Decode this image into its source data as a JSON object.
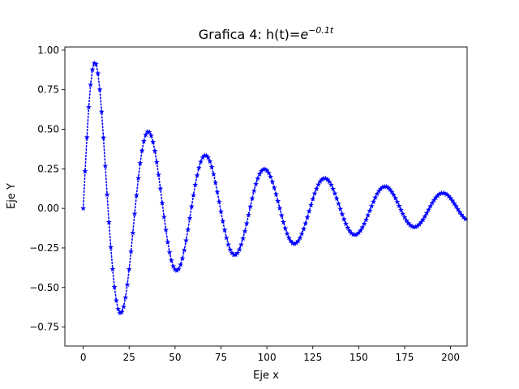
{
  "chart_data": {
    "type": "line",
    "title": "Grafica 4: h(t)=",
    "title_math": {
      "base": "e",
      "exponent": "−0.1t"
    },
    "xlabel": "Eje x",
    "ylabel": "Eje Y",
    "xlim": [
      -10,
      209
    ],
    "ylim": [
      -0.87,
      1.02
    ],
    "xticks": [
      0,
      25,
      50,
      75,
      100,
      125,
      150,
      175,
      200
    ],
    "xtick_labels": [
      "0",
      "25",
      "50",
      "75",
      "100",
      "125",
      "150",
      "175",
      "200"
    ],
    "yticks": [
      -0.75,
      -0.5,
      -0.25,
      0.0,
      0.25,
      0.5,
      0.75,
      1.0
    ],
    "ytick_labels": [
      "−0.75",
      "−0.50",
      "−0.25",
      "0.00",
      "0.25",
      "0.50",
      "0.75",
      "1.00"
    ],
    "grid": false,
    "series": [
      {
        "color": "#0000ff",
        "line_style": "dotted",
        "marker": "star",
        "x_start": 0,
        "x_step": 1,
        "y": [
          0,
          0.235,
          0.449,
          0.639,
          0.781,
          0.877,
          0.918,
          0.912,
          0.853,
          0.751,
          0.611,
          0.447,
          0.268,
          0.087,
          -0.087,
          -0.245,
          -0.384,
          -0.497,
          -0.582,
          -0.636,
          -0.661,
          -0.655,
          -0.622,
          -0.563,
          -0.482,
          -0.384,
          -0.273,
          -0.155,
          -0.034,
          0.083,
          0.191,
          0.286,
          0.365,
          0.425,
          0.465,
          0.484,
          0.482,
          0.46,
          0.419,
          0.363,
          0.292,
          0.212,
          0.125,
          0.035,
          -0.054,
          -0.137,
          -0.213,
          -0.278,
          -0.329,
          -0.366,
          -0.387,
          -0.393,
          -0.382,
          -0.356,
          -0.316,
          -0.264,
          -0.203,
          -0.134,
          -0.062,
          0.012,
          0.083,
          0.149,
          0.208,
          0.257,
          0.295,
          0.321,
          0.334,
          0.334,
          0.321,
          0.297,
          0.261,
          0.216,
          0.163,
          0.104,
          0.042,
          -0.02,
          -0.081,
          -0.137,
          -0.187,
          -0.229,
          -0.261,
          -0.283,
          -0.294,
          -0.293,
          -0.282,
          -0.26,
          -0.229,
          -0.19,
          -0.145,
          -0.095,
          -0.042,
          0.011,
          0.063,
          0.111,
          0.153,
          0.189,
          0.217,
          0.236,
          0.246,
          0.248,
          0.24,
          0.224,
          0.2,
          0.168,
          0.131,
          0.09,
          0.046,
          0.001,
          -0.044,
          -0.087,
          -0.126,
          -0.16,
          -0.187,
          -0.207,
          -0.22,
          -0.224,
          -0.219,
          -0.207,
          -0.187,
          -0.161,
          -0.13,
          -0.095,
          -0.057,
          -0.018,
          0.021,
          0.059,
          0.094,
          0.124,
          0.15,
          0.17,
          0.183,
          0.19,
          0.189,
          0.182,
          0.168,
          0.148,
          0.123,
          0.094,
          0.063,
          0.03,
          -0.004,
          -0.037,
          -0.069,
          -0.098,
          -0.122,
          -0.142,
          -0.157,
          -0.165,
          -0.167,
          -0.164,
          -0.154,
          -0.14,
          -0.12,
          -0.097,
          -0.072,
          -0.044,
          -0.015,
          0.014,
          0.042,
          0.068,
          0.091,
          0.11,
          0.124,
          0.134,
          0.138,
          0.137,
          0.131,
          0.12,
          0.104,
          0.086,
          0.064,
          0.04,
          0.015,
          -0.01,
          -0.035,
          -0.057,
          -0.077,
          -0.094,
          -0.106,
          -0.114,
          -0.118,
          -0.117,
          -0.111,
          -0.101,
          -0.087,
          -0.071,
          -0.051,
          -0.03,
          -0.009,
          0.013,
          0.034,
          0.052,
          0.068,
          0.081,
          0.091,
          0.096,
          0.097,
          0.094,
          0.088,
          0.077,
          0.064,
          0.048,
          0.031,
          0.013,
          -0.006,
          -0.024,
          -0.041,
          -0.056,
          -0.067
        ]
      }
    ]
  }
}
